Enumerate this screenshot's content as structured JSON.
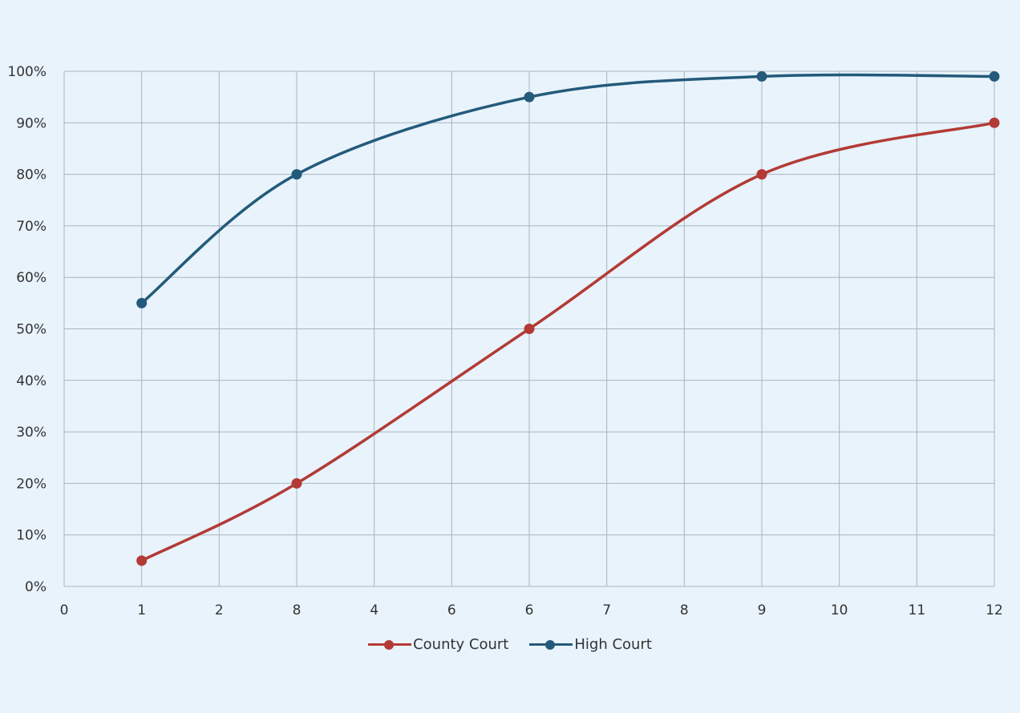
{
  "chart_data": {
    "type": "line",
    "title": "",
    "xlabel": "",
    "ylabel": "",
    "categories": [
      "0",
      "1",
      "2",
      "8",
      "4",
      "6",
      "6",
      "7",
      "8",
      "9",
      "10",
      "11",
      "12"
    ],
    "x_tick_labels": [
      "0",
      "1",
      "2",
      "8",
      "4",
      "6",
      "6",
      "7",
      "8",
      "9",
      "10",
      "11",
      "12"
    ],
    "y_tick_labels": [
      "0%",
      "10%",
      "20%",
      "30%",
      "40%",
      "50%",
      "60%",
      "70%",
      "80%",
      "90%",
      "100%"
    ],
    "ylim": [
      0,
      100
    ],
    "grid": true,
    "legend_position": "bottom",
    "smooth": true,
    "series": [
      {
        "name": "County Court",
        "color": "#b33a35",
        "points": [
          {
            "x_index": 1,
            "x_label": "1",
            "value": 5
          },
          {
            "x_index": 3,
            "x_label": "8",
            "value": 20
          },
          {
            "x_index": 6,
            "x_label": "6",
            "value": 50
          },
          {
            "x_index": 9,
            "x_label": "9",
            "value": 80
          },
          {
            "x_index": 12,
            "x_label": "12",
            "value": 90
          }
        ]
      },
      {
        "name": "High Court",
        "color": "#245a7a",
        "points": [
          {
            "x_index": 1,
            "x_label": "1",
            "value": 55
          },
          {
            "x_index": 3,
            "x_label": "8",
            "value": 80
          },
          {
            "x_index": 6,
            "x_label": "6",
            "value": 95
          },
          {
            "x_index": 9,
            "x_label": "9",
            "value": 99
          },
          {
            "x_index": 12,
            "x_label": "12",
            "value": 99
          }
        ]
      }
    ]
  },
  "legend": {
    "items": [
      {
        "label": "County Court",
        "color": "#b33a35"
      },
      {
        "label": "High Court",
        "color": "#245a7a"
      }
    ]
  },
  "colors": {
    "background": "#e8f3fc",
    "grid": "#a9b4bf",
    "axis_text": "#333333"
  }
}
